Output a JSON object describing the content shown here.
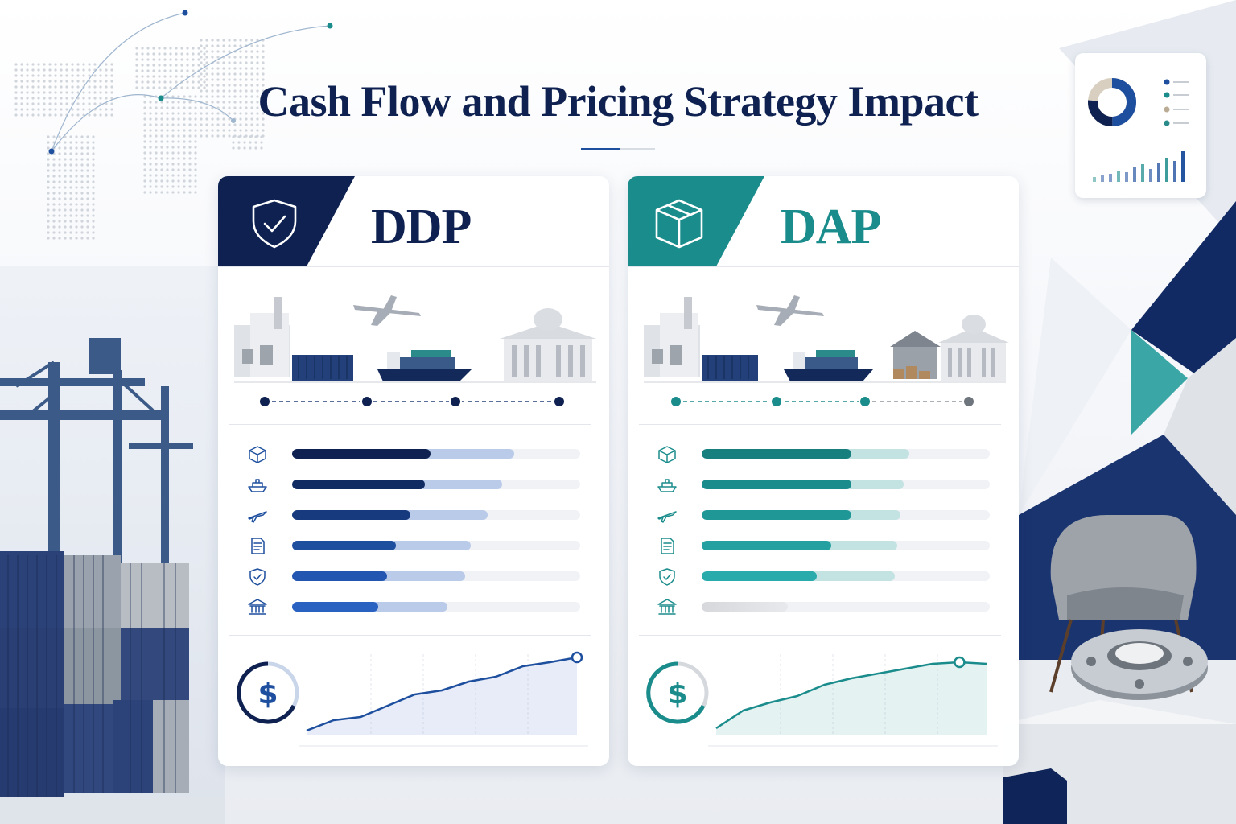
{
  "title": "Cash Flow and Pricing Strategy Impact",
  "colors": {
    "navy": "#0e2150",
    "blue": "#1e4f9e",
    "teal": "#1b8c8c",
    "gray": "#8f959e"
  },
  "cards": [
    {
      "key": "ddp",
      "label": "DDP",
      "header_icon": "shield-check-icon",
      "route_icons": [
        "factory-icon",
        "container-icon",
        "airplane-icon",
        "cargo-ship-icon",
        "government-building-icon"
      ],
      "metrics": [
        {
          "icon": "package-icon",
          "fill": 0.48,
          "secondary": 0.77
        },
        {
          "icon": "ship-icon",
          "fill": 0.46,
          "secondary": 0.73
        },
        {
          "icon": "plane-icon",
          "fill": 0.41,
          "secondary": 0.68
        },
        {
          "icon": "document-icon",
          "fill": 0.36,
          "secondary": 0.62
        },
        {
          "icon": "shield-icon",
          "fill": 0.33,
          "secondary": 0.6
        },
        {
          "icon": "bank-icon",
          "fill": 0.3,
          "secondary": 0.54
        }
      ],
      "trend": [
        0.05,
        0.18,
        0.22,
        0.36,
        0.5,
        0.55,
        0.66,
        0.72,
        0.85,
        0.9,
        0.96
      ],
      "trend_icon": "dollar-icon"
    },
    {
      "key": "dap",
      "label": "DAP",
      "header_icon": "package-box-icon",
      "route_icons": [
        "factory-icon",
        "container-icon",
        "airplane-icon",
        "cargo-ship-icon",
        "warehouse-icon",
        "boxes-icon",
        "government-building-icon"
      ],
      "metrics": [
        {
          "icon": "package-icon",
          "fill": 0.52,
          "secondary": 0.72
        },
        {
          "icon": "ship-icon",
          "fill": 0.52,
          "secondary": 0.7
        },
        {
          "icon": "plane-icon",
          "fill": 0.52,
          "secondary": 0.69
        },
        {
          "icon": "document-icon",
          "fill": 0.45,
          "secondary": 0.68
        },
        {
          "icon": "shield-icon",
          "fill": 0.4,
          "secondary": 0.67
        },
        {
          "icon": "bank-icon",
          "fill": 0.3,
          "secondary": 0.0
        }
      ],
      "trend": [
        0.08,
        0.3,
        0.4,
        0.48,
        0.62,
        0.7,
        0.76,
        0.82,
        0.88,
        0.9,
        0.88
      ],
      "trend_icon": "dollar-icon"
    }
  ],
  "decor": {
    "left_scene": "shipping-port-icon",
    "right_scene": "armchair-icon",
    "flange": "steel-flange-icon",
    "map": "world-map-icon",
    "widget": "dashboard-chart-icon"
  }
}
